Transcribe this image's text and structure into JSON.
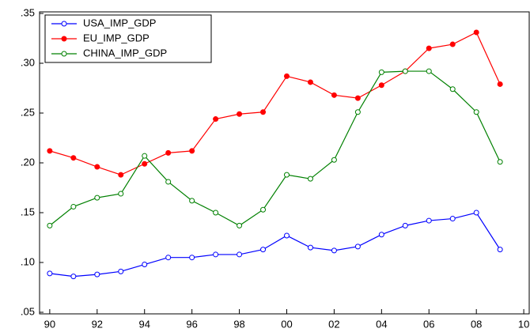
{
  "chart_data": {
    "type": "line",
    "x": [
      1990,
      1991,
      1992,
      1993,
      1994,
      1995,
      1996,
      1997,
      1998,
      1999,
      2000,
      2001,
      2002,
      2003,
      2004,
      2005,
      2006,
      2007,
      2008,
      2009
    ],
    "series": [
      {
        "name": "USA_IMP_GDP",
        "color": "#0000ff",
        "marker": "open",
        "values": [
          0.089,
          0.086,
          0.088,
          0.091,
          0.098,
          0.105,
          0.105,
          0.108,
          0.108,
          0.113,
          0.127,
          0.115,
          0.112,
          0.116,
          0.128,
          0.137,
          0.142,
          0.144,
          0.15,
          0.113
        ]
      },
      {
        "name": "EU_IMP_GDP",
        "color": "#ff0000",
        "marker": "filled",
        "values": [
          0.212,
          0.205,
          0.196,
          0.188,
          0.199,
          0.21,
          0.212,
          0.244,
          0.249,
          0.251,
          0.287,
          0.281,
          0.268,
          0.265,
          0.278,
          0.292,
          0.315,
          0.319,
          0.331,
          0.279
        ]
      },
      {
        "name": "CHINA_IMP_GDP",
        "color": "#008000",
        "marker": "open",
        "values": [
          0.137,
          0.156,
          0.165,
          0.169,
          0.207,
          0.181,
          0.162,
          0.15,
          0.137,
          0.153,
          0.188,
          0.184,
          0.203,
          0.251,
          0.291,
          0.292,
          0.292,
          0.274,
          0.251,
          0.201
        ]
      }
    ],
    "xlim": [
      1989.57,
      2010.23
    ],
    "xticks": [
      {
        "value": 1990,
        "label": "90"
      },
      {
        "value": 1992,
        "label": "92"
      },
      {
        "value": 1994,
        "label": "94"
      },
      {
        "value": 1996,
        "label": "96"
      },
      {
        "value": 1998,
        "label": "98"
      },
      {
        "value": 2000,
        "label": "00"
      },
      {
        "value": 2002,
        "label": "02"
      },
      {
        "value": 2004,
        "label": "04"
      },
      {
        "value": 2006,
        "label": "06"
      },
      {
        "value": 2008,
        "label": "08"
      },
      {
        "value": 2010,
        "label": "10"
      }
    ],
    "ylim": [
      0.05,
      0.35
    ],
    "yticks": [
      {
        "value": 0.05,
        "label": ".05"
      },
      {
        "value": 0.1,
        "label": ".10"
      },
      {
        "value": 0.15,
        "label": ".15"
      },
      {
        "value": 0.2,
        "label": ".20"
      },
      {
        "value": 0.25,
        "label": ".25"
      },
      {
        "value": 0.3,
        "label": ".30"
      },
      {
        "value": 0.35,
        "label": ".35"
      }
    ],
    "legend": "top-left"
  }
}
